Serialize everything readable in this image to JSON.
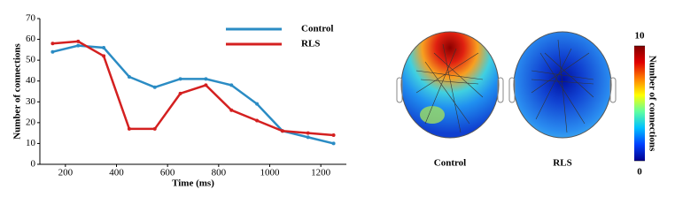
{
  "chart_data": [
    {
      "type": "line",
      "xlabel": "Time (ms)",
      "ylabel": "Number of connections",
      "x": [
        150,
        250,
        350,
        450,
        550,
        650,
        750,
        850,
        950,
        1050,
        1150,
        1250
      ],
      "series": [
        {
          "name": "Control",
          "color": "#2b8cc4",
          "values": [
            54,
            57,
            56,
            42,
            37,
            41,
            41,
            38,
            29,
            16,
            13,
            10
          ]
        },
        {
          "name": "RLS",
          "color": "#d42020",
          "values": [
            58,
            59,
            52,
            17,
            17,
            34,
            38,
            26,
            21,
            16,
            15,
            14
          ]
        }
      ],
      "xlim": [
        100,
        1300
      ],
      "xticks": [
        200,
        400,
        600,
        800,
        1000,
        1200
      ],
      "ylim": [
        0,
        70
      ],
      "yticks": [
        0,
        10,
        20,
        30,
        40,
        50,
        60,
        70
      ],
      "legend": "upper right"
    },
    {
      "type": "topomap",
      "panels": [
        "Control",
        "RLS"
      ],
      "colorbar_label": "Number of connections",
      "clim": [
        0,
        10
      ],
      "colorbar_ticks": [
        0,
        10
      ]
    }
  ]
}
